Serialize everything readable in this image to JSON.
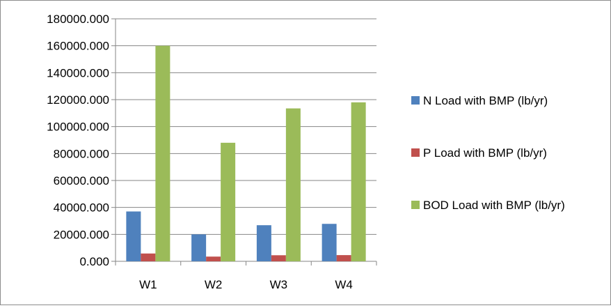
{
  "chart_data": {
    "type": "bar",
    "categories": [
      "W1",
      "W2",
      "W3",
      "W4"
    ],
    "series": [
      {
        "name": "N Load with BMP (lb/yr)",
        "color": "#4f81bd",
        "values": [
          37000,
          20000,
          26800,
          27800
        ]
      },
      {
        "name": "P Load with BMP (lb/yr)",
        "color": "#c0504d",
        "values": [
          5800,
          3500,
          4500,
          4600
        ]
      },
      {
        "name": "BOD Load with BMP (lb/yr)",
        "color": "#9bbb59",
        "values": [
          160000,
          88000,
          113500,
          118000
        ]
      }
    ],
    "ylim": [
      0,
      180000
    ],
    "yticks": [
      "0.000",
      "20000.000",
      "40000.000",
      "60000.000",
      "80000.000",
      "100000.000",
      "120000.000",
      "140000.000",
      "160000.000",
      "180000.000"
    ],
    "grid": true,
    "legend_position": "right",
    "title": "",
    "xlabel": "",
    "ylabel": ""
  }
}
